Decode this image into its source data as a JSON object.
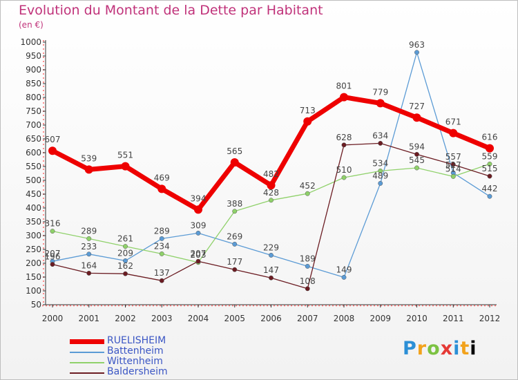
{
  "title": "Evolution du Montant de la Dette par Habitant",
  "subtitle": "(en €)",
  "logo": [
    "P",
    "r",
    "o",
    "x",
    "i",
    "t",
    "i"
  ],
  "chart_data": {
    "type": "line",
    "title": "Evolution du Montant de la Dette par Habitant",
    "ylabel": "(en €)",
    "xlabel": "",
    "ylim": [
      50,
      1000
    ],
    "yticks": [
      50,
      100,
      150,
      200,
      250,
      300,
      350,
      400,
      450,
      500,
      550,
      600,
      650,
      700,
      750,
      800,
      850,
      900,
      950,
      1000
    ],
    "categories": [
      "2000",
      "2001",
      "2002",
      "2003",
      "2004",
      "2005",
      "2006",
      "2007",
      "2008",
      "2009",
      "2010",
      "2011",
      "2012"
    ],
    "grid": false,
    "legend_position": "bottom-left",
    "series": [
      {
        "name": "RUELISHEIM",
        "color": "#ee0000",
        "width": 7,
        "values": [
          607,
          539,
          551,
          469,
          394,
          565,
          482,
          713,
          801,
          779,
          727,
          671,
          616
        ]
      },
      {
        "name": "Battenheim",
        "color": "#5b9bd5",
        "width": 1.3,
        "values": [
          207,
          233,
          209,
          289,
          309,
          269,
          229,
          189,
          149,
          489,
          963,
          527,
          442
        ]
      },
      {
        "name": "Wittenheim",
        "color": "#8fd16a",
        "width": 1.3,
        "values": [
          316,
          289,
          261,
          234,
          203,
          388,
          428,
          452,
          510,
          534,
          545,
          514,
          559
        ]
      },
      {
        "name": "Baldersheim",
        "color": "#6b1c22",
        "width": 1.3,
        "values": [
          196,
          164,
          162,
          137,
          207,
          177,
          147,
          108,
          628,
          634,
          594,
          557,
          515
        ]
      }
    ]
  }
}
